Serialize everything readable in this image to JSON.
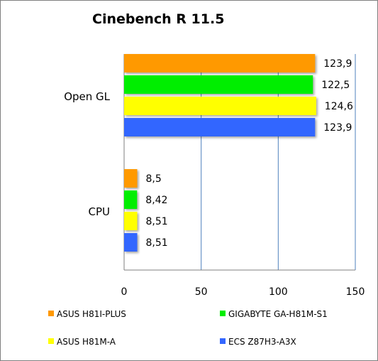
{
  "chart_data": {
    "type": "bar",
    "orientation": "horizontal",
    "title": "Cinebench R 11.5",
    "categories": [
      "Open GL",
      "CPU"
    ],
    "series": [
      {
        "name": "ASUS H81I-PLUS",
        "color": "#ff9900",
        "values": [
          123.9,
          8.5
        ],
        "labels": [
          "123,9",
          "8,5"
        ]
      },
      {
        "name": "GIGABYTE GA-H81M-S1",
        "color": "#00ee00",
        "values": [
          122.5,
          8.42
        ],
        "labels": [
          "122,5",
          "8,42"
        ]
      },
      {
        "name": "ASUS H81M-A",
        "color": "#ffff00",
        "values": [
          124.6,
          8.51
        ],
        "labels": [
          "124,6",
          "8,51"
        ]
      },
      {
        "name": "ECS Z87H3-A3X",
        "color": "#3366ff",
        "values": [
          123.9,
          8.51
        ],
        "labels": [
          "123,9",
          "8,51"
        ]
      }
    ],
    "xlim": [
      0,
      150
    ],
    "xticks": [
      0,
      50,
      100,
      150
    ],
    "grid": "vertical",
    "legend_position": "bottom"
  }
}
